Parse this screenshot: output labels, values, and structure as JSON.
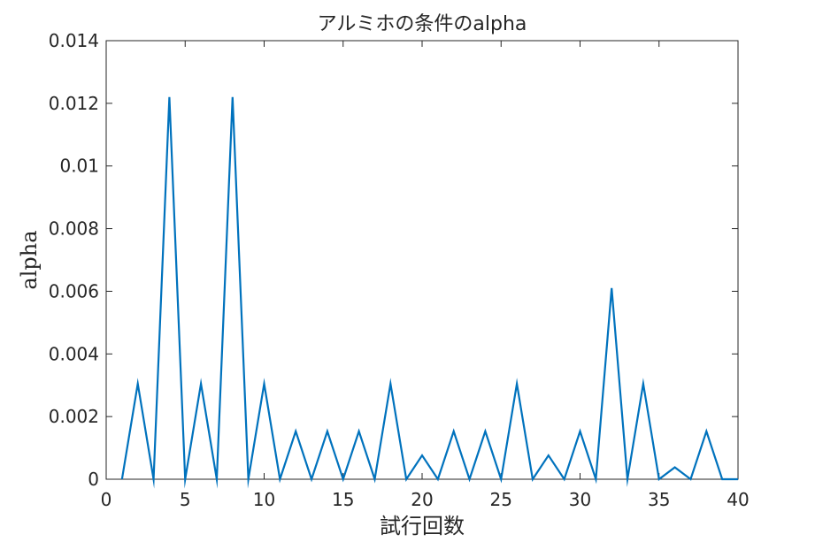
{
  "chart_data": {
    "type": "line",
    "title": "アルミホの条件のalpha",
    "xlabel": "試行回数",
    "ylabel": "alpha",
    "xlim": [
      0,
      40
    ],
    "ylim": [
      0,
      0.014
    ],
    "xticks": [
      0,
      5,
      10,
      15,
      20,
      25,
      30,
      35,
      40
    ],
    "xtick_labels": [
      "0",
      "5",
      "10",
      "15",
      "20",
      "25",
      "30",
      "35",
      "40"
    ],
    "yticks": [
      0,
      0.002,
      0.004,
      0.006,
      0.008,
      0.01,
      0.012,
      0.014
    ],
    "ytick_labels": [
      "0",
      "0.002",
      "0.004",
      "0.006",
      "0.008",
      "0.01",
      "0.012",
      "0.014"
    ],
    "grid": false,
    "box": true,
    "series": [
      {
        "color": "#0072BD",
        "x": [
          1,
          2,
          3,
          4,
          5,
          6,
          7,
          8,
          9,
          10,
          11,
          12,
          13,
          14,
          15,
          16,
          17,
          18,
          19,
          20,
          21,
          22,
          23,
          24,
          25,
          26,
          27,
          28,
          29,
          30,
          31,
          32,
          33,
          34,
          35,
          36,
          37,
          38,
          39,
          40
        ],
        "y": [
          0,
          0.00305,
          0,
          0.0122,
          0,
          0.00305,
          0,
          0.0122,
          0,
          0.00305,
          0,
          0.00153,
          0,
          0.00153,
          0,
          0.00153,
          0,
          0.00305,
          0,
          0.00076,
          0,
          0.00153,
          0,
          0.00153,
          0,
          0.00305,
          0,
          0.00076,
          0,
          0.00153,
          0,
          0.0061,
          0,
          0.00305,
          0,
          0.00038,
          0,
          0.00153,
          0,
          0
        ]
      }
    ]
  }
}
